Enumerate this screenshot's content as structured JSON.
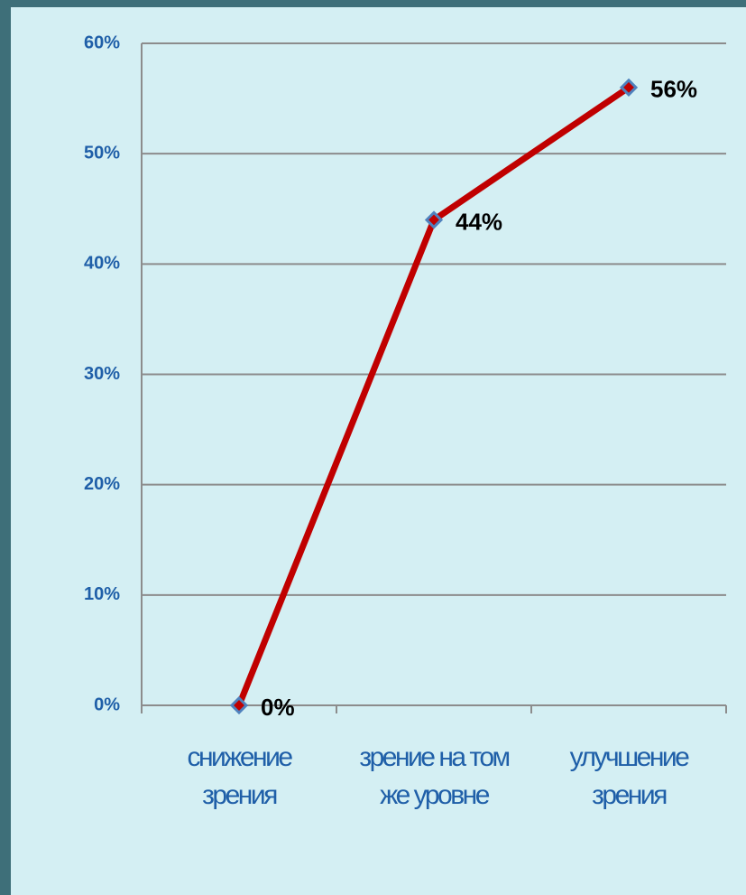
{
  "chart_data": {
    "type": "line",
    "categories": [
      "снижение зрения",
      "зрение на том же уровне",
      "улучшение зрения"
    ],
    "values": [
      0,
      44,
      56
    ],
    "value_labels": [
      "0%",
      "44%",
      "56%"
    ],
    "color": "#c00000",
    "marker_color": "#4f81bd",
    "ylim": [
      0,
      60
    ],
    "yticks": [
      {
        "value": 0,
        "label": "0%"
      },
      {
        "value": 10,
        "label": "10%"
      },
      {
        "value": 20,
        "label": "20%"
      },
      {
        "value": 30,
        "label": "30%"
      },
      {
        "value": 40,
        "label": "40%"
      },
      {
        "value": 50,
        "label": "50%"
      },
      {
        "value": 60,
        "label": "60%"
      }
    ],
    "grid": true
  }
}
